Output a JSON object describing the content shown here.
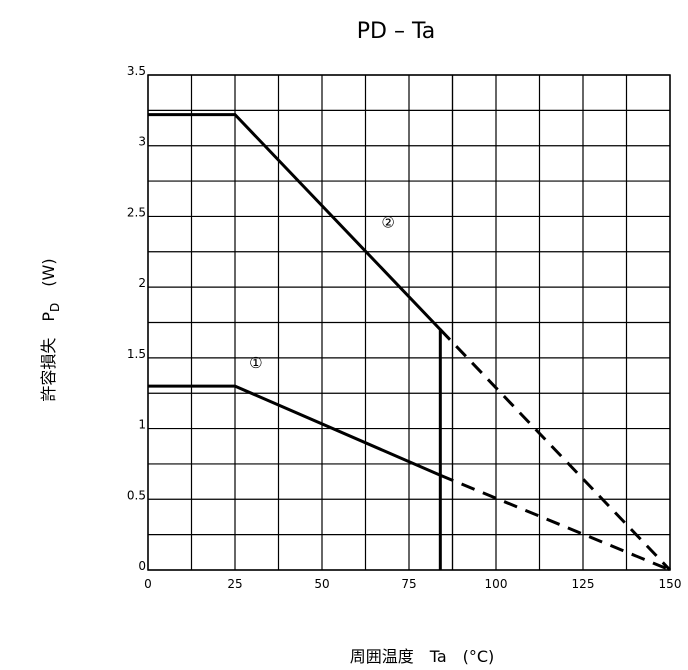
{
  "chart_data": {
    "type": "line",
    "title": "PD – Ta",
    "xlabel": "周囲温度　Ta　(°C)",
    "ylabel": {
      "prefix": "許容損失　P",
      "subscript": "D",
      "suffix": "　(W)"
    },
    "xlim": [
      0,
      150
    ],
    "ylim": [
      0,
      3.5
    ],
    "x_ticks": [
      "0",
      "25",
      "50",
      "75",
      "100",
      "125",
      "150"
    ],
    "y_ticks": [
      "0",
      "0.5",
      "1",
      "1.5",
      "2",
      "2.5",
      "3",
      "3.5"
    ],
    "x_tick_values": [
      0,
      25,
      50,
      75,
      100,
      125,
      150
    ],
    "y_tick_values": [
      0,
      0.5,
      1,
      1.5,
      2,
      2.5,
      3,
      3.5
    ],
    "grid": true,
    "grid_x_step": 12.5,
    "grid_y_step": 0.25,
    "series": [
      {
        "name": "①",
        "solid": [
          [
            0,
            1.3
          ],
          [
            25,
            1.3
          ],
          [
            84,
            0.67
          ]
        ],
        "dashed": [
          [
            84,
            0.67
          ],
          [
            150,
            0
          ]
        ],
        "label_at": [
          31,
          1.43
        ]
      },
      {
        "name": "②",
        "solid": [
          [
            0,
            3.22
          ],
          [
            25,
            3.22
          ],
          [
            84,
            1.7
          ],
          [
            84,
            0
          ]
        ],
        "dashed": [
          [
            84,
            1.7
          ],
          [
            150,
            0
          ]
        ],
        "label_at": [
          69,
          2.42
        ]
      }
    ],
    "extra_vertical_line_x": 87.5,
    "line_color": "#000000"
  }
}
